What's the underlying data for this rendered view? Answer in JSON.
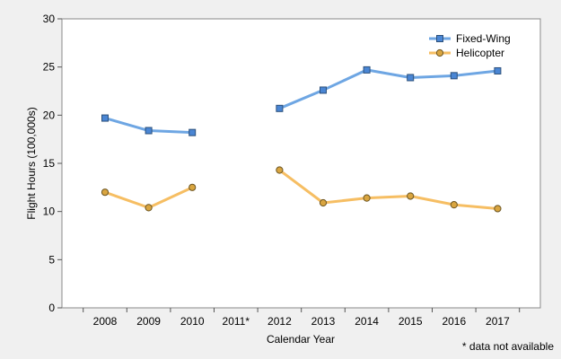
{
  "chart_data": {
    "type": "line",
    "title": "",
    "xlabel": "Calendar Year",
    "ylabel": "Flight Hours (100,000s)",
    "ylim": [
      0,
      30
    ],
    "yticks": [
      0,
      5,
      10,
      15,
      20,
      25,
      30
    ],
    "categories": [
      "2008",
      "2009",
      "2010",
      "2011*",
      "2012",
      "2013",
      "2014",
      "2015",
      "2016",
      "2017"
    ],
    "grid": false,
    "legend_position": "top-right",
    "series": [
      {
        "name": "Fixed-Wing",
        "color": "#6ea6e3",
        "marker_fill": "#4a86d4",
        "marker": "square",
        "values": [
          19.7,
          18.4,
          18.2,
          null,
          20.7,
          22.6,
          24.7,
          23.9,
          24.1,
          24.6
        ]
      },
      {
        "name": "Helicopter",
        "color": "#f6be63",
        "marker_fill": "#d9a540",
        "marker": "circle",
        "values": [
          12.0,
          10.4,
          12.5,
          null,
          14.3,
          10.9,
          11.4,
          11.6,
          10.7,
          10.3
        ]
      }
    ],
    "footnote": "* data not available"
  }
}
